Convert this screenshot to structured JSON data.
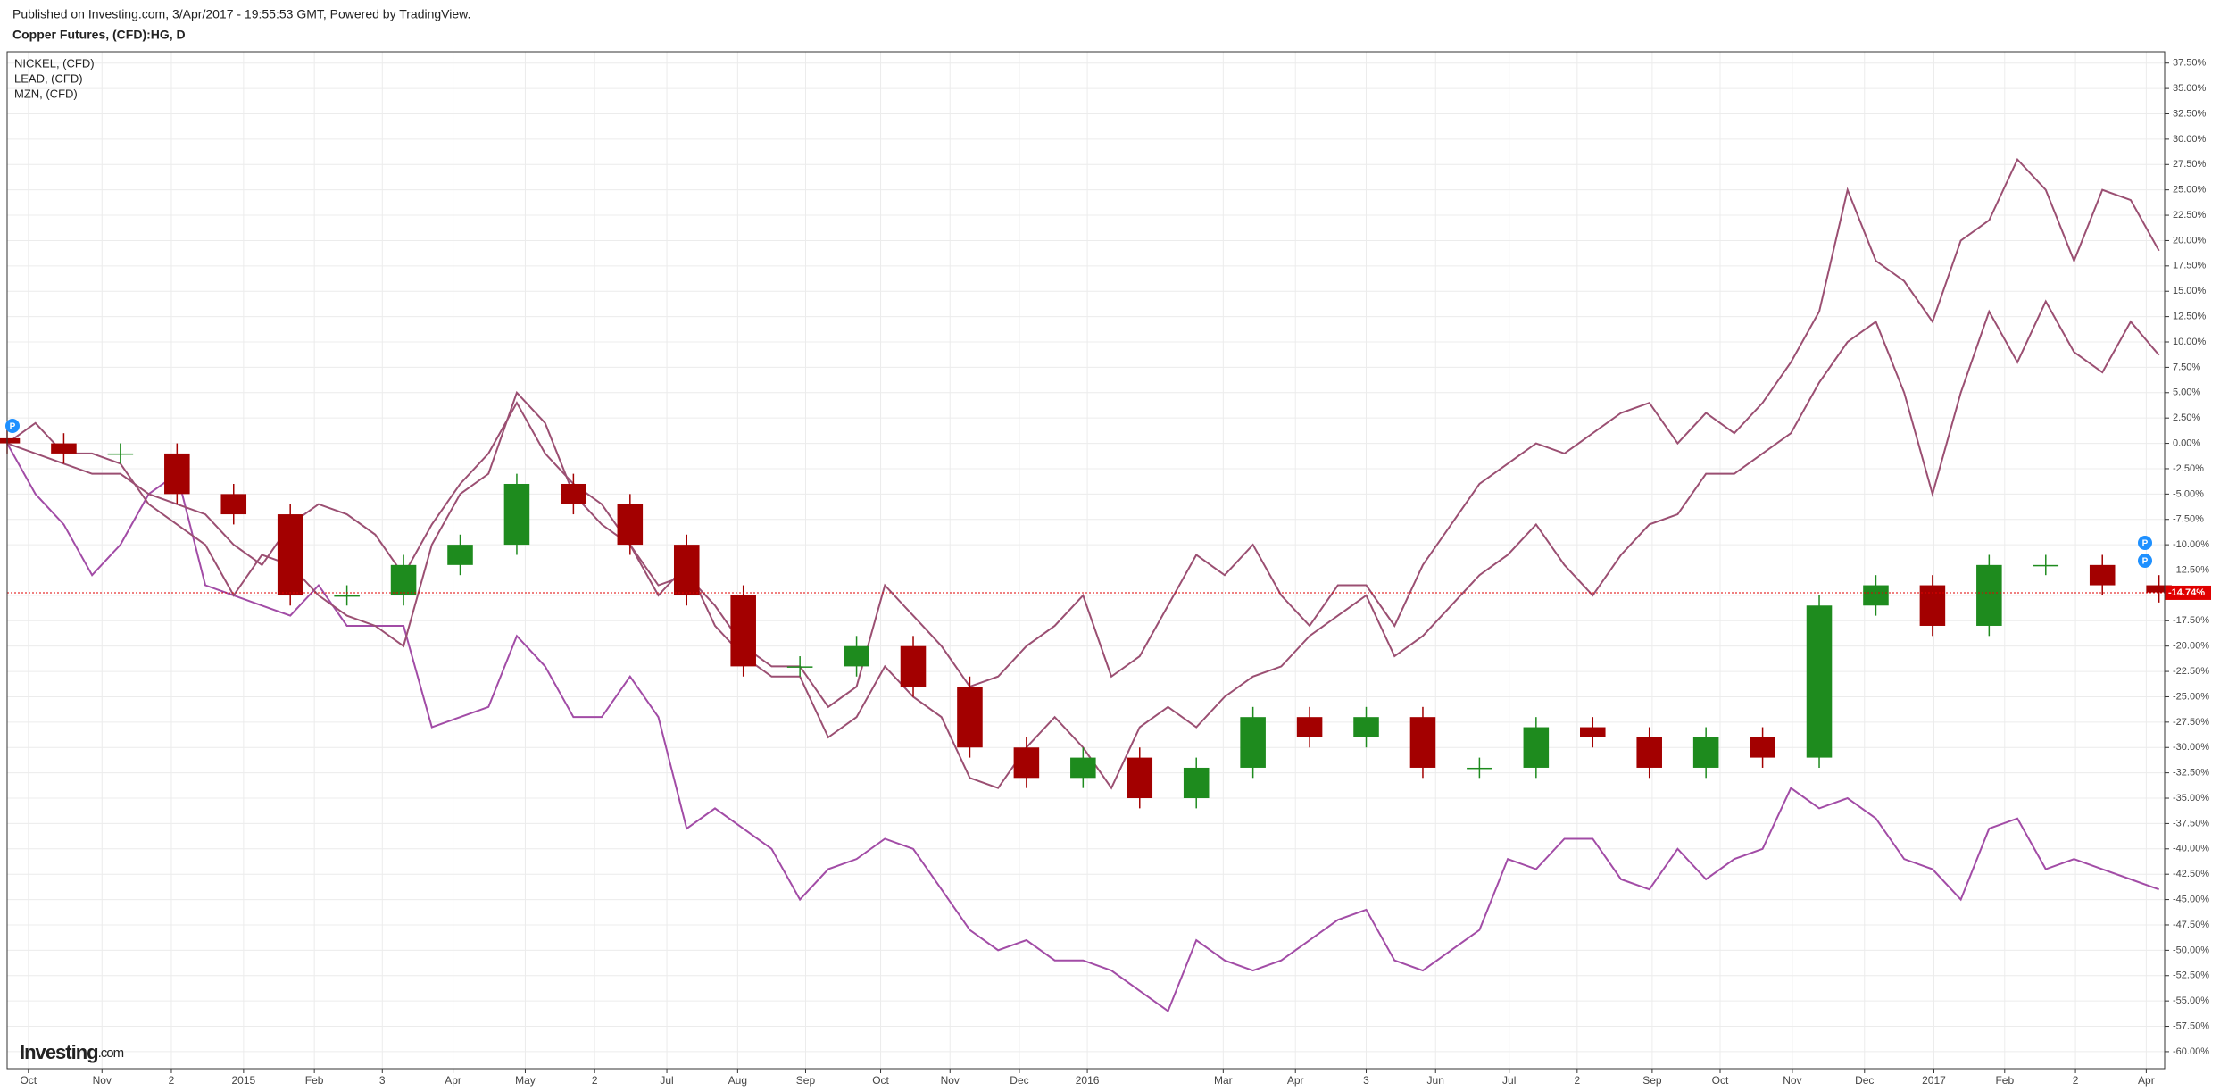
{
  "header": {
    "published": "Published on Investing.com, 3/Apr/2017 - 19:55:53 GMT, Powered by TradingView.",
    "symbol": "Copper Futures, (CFD):HG, D"
  },
  "logo": {
    "brand": "Investing",
    "suffix": ".com"
  },
  "chart_data": {
    "type": "candlestick",
    "ylim": [
      -61.68,
      38.62
    ],
    "xlim": [
      0,
      76.2
    ],
    "grid": true,
    "yticks": [
      {
        "value": 37.5,
        "label": "37.50%"
      },
      {
        "value": 35,
        "label": "35.00%"
      },
      {
        "value": 32.5,
        "label": "32.50%"
      },
      {
        "value": 30,
        "label": "30.00%"
      },
      {
        "value": 27.5,
        "label": "27.50%"
      },
      {
        "value": 25,
        "label": "25.00%"
      },
      {
        "value": 22.5,
        "label": "22.50%"
      },
      {
        "value": 20,
        "label": "20.00%"
      },
      {
        "value": 17.5,
        "label": "17.50%"
      },
      {
        "value": 15,
        "label": "15.00%"
      },
      {
        "value": 12.5,
        "label": "12.50%"
      },
      {
        "value": 10,
        "label": "10.00%"
      },
      {
        "value": 7.5,
        "label": "7.50%"
      },
      {
        "value": 5,
        "label": "5.00%"
      },
      {
        "value": 2.5,
        "label": "2.50%"
      },
      {
        "value": 0,
        "label": "0.00%"
      },
      {
        "value": -2.5,
        "label": "-2.50%"
      },
      {
        "value": -5,
        "label": "-5.00%"
      },
      {
        "value": -7.5,
        "label": "-7.50%"
      },
      {
        "value": -10,
        "label": "-10.00%"
      },
      {
        "value": -12.5,
        "label": "-12.50%"
      },
      {
        "value": -15,
        "label": "-15.00%"
      },
      {
        "value": -17.5,
        "label": "-17.50%"
      },
      {
        "value": -20,
        "label": "-20.00%"
      },
      {
        "value": -22.5,
        "label": "-22.50%"
      },
      {
        "value": -25,
        "label": "-25.00%"
      },
      {
        "value": -27.5,
        "label": "-27.50%"
      },
      {
        "value": -30,
        "label": "-30.00%"
      },
      {
        "value": -32.5,
        "label": "-32.50%"
      },
      {
        "value": -35,
        "label": "-35.00%"
      },
      {
        "value": -37.5,
        "label": "-37.50%"
      },
      {
        "value": -40,
        "label": "-40.00%"
      },
      {
        "value": -42.5,
        "label": "-42.50%"
      },
      {
        "value": -45,
        "label": "-45.00%"
      },
      {
        "value": -47.5,
        "label": "-47.50%"
      },
      {
        "value": -50,
        "label": "-50.00%"
      },
      {
        "value": -52.5,
        "label": "-52.50%"
      },
      {
        "value": -55,
        "label": "-55.00%"
      },
      {
        "value": -57.5,
        "label": "-57.50%"
      },
      {
        "value": -60,
        "label": "-60.00%"
      }
    ],
    "xticks": [
      {
        "value": 0.75,
        "label": "Oct"
      },
      {
        "value": 3.35,
        "label": "Nov"
      },
      {
        "value": 5.8,
        "label": "2"
      },
      {
        "value": 8.35,
        "label": "2015"
      },
      {
        "value": 10.85,
        "label": "Feb"
      },
      {
        "value": 13.25,
        "label": "3"
      },
      {
        "value": 15.75,
        "label": "Apr"
      },
      {
        "value": 18.3,
        "label": "May"
      },
      {
        "value": 20.75,
        "label": "2"
      },
      {
        "value": 23.3,
        "label": "Jul"
      },
      {
        "value": 25.8,
        "label": "Aug"
      },
      {
        "value": 28.2,
        "label": "Sep"
      },
      {
        "value": 30.85,
        "label": "Oct"
      },
      {
        "value": 33.3,
        "label": "Nov"
      },
      {
        "value": 35.75,
        "label": "Dec"
      },
      {
        "value": 38.15,
        "label": "2016"
      },
      {
        "value": 42.95,
        "label": "Mar"
      },
      {
        "value": 45.5,
        "label": "Apr"
      },
      {
        "value": 48,
        "label": "3"
      },
      {
        "value": 50.45,
        "label": "Jun"
      },
      {
        "value": 53.05,
        "label": "Jul"
      },
      {
        "value": 55.45,
        "label": "2"
      },
      {
        "value": 58.1,
        "label": "Sep"
      },
      {
        "value": 60.5,
        "label": "Oct"
      },
      {
        "value": 63.05,
        "label": "Nov"
      },
      {
        "value": 65.6,
        "label": "Dec"
      },
      {
        "value": 68.05,
        "label": "2017"
      },
      {
        "value": 70.55,
        "label": "Feb"
      },
      {
        "value": 73.05,
        "label": "2"
      },
      {
        "value": 75.55,
        "label": "Apr"
      }
    ],
    "candles": {
      "up_color": "#1e8b1e",
      "down_color": "#a30000",
      "x": [
        0,
        2,
        4,
        6,
        8,
        10,
        12,
        14,
        16,
        18,
        20,
        22,
        24,
        26,
        28,
        30,
        32,
        34,
        36,
        38,
        40,
        42,
        44,
        46,
        48,
        50,
        52,
        54,
        56,
        58,
        60,
        62,
        64,
        66,
        68,
        70,
        72,
        74,
        76
      ],
      "open": [
        0.5,
        0,
        -1,
        -1,
        -5,
        -7,
        -15,
        -15,
        -12,
        -10,
        -4,
        -6,
        -10,
        -15,
        -22,
        -22,
        -20,
        -24,
        -30,
        -33,
        -31,
        -35,
        -32,
        -27,
        -29,
        -27,
        -32,
        -32,
        -28,
        -29,
        -32,
        -29,
        -31,
        -16,
        -14,
        -18,
        -12,
        -12,
        -14
      ],
      "high": [
        1.5,
        1,
        0,
        0,
        -4,
        -6,
        -14,
        -11,
        -9,
        -3,
        -3,
        -5,
        -9,
        -14,
        -21,
        -19,
        -19,
        -23,
        -29,
        -30,
        -30,
        -31,
        -26,
        -26,
        -26,
        -26,
        -31,
        -27,
        -27,
        -28,
        -28,
        -28,
        -15,
        -13,
        -13,
        -11,
        -11,
        -11,
        -13
      ],
      "low": [
        -1,
        -2,
        -2,
        -6,
        -8,
        -16,
        -16,
        -16,
        -13,
        -11,
        -7,
        -11,
        -16,
        -23,
        -23,
        -23,
        -25,
        -31,
        -34,
        -34,
        -36,
        -36,
        -33,
        -30,
        -30,
        -33,
        -33,
        -33,
        -30,
        -33,
        -33,
        -32,
        -32,
        -17,
        -19,
        -19,
        -13,
        -15,
        -15.7
      ],
      "close": [
        0,
        -1,
        -1,
        -5,
        -7,
        -15,
        -15,
        -12,
        -10,
        -4,
        -6,
        -10,
        -15,
        -22,
        -22,
        -20,
        -24,
        -30,
        -33,
        -31,
        -35,
        -32,
        -27,
        -29,
        -27,
        -32,
        -32,
        -28,
        -29,
        -32,
        -29,
        -31,
        -16,
        -14,
        -18,
        -12,
        -12,
        -14,
        -14.7
      ]
    },
    "last_value": -14.74,
    "last_label": "-14.74%",
    "last_color": "#e00000",
    "series": [
      {
        "name": "NICKEL,  (CFD)",
        "color": "#a24ca6",
        "values": [
          0,
          -5,
          -8,
          -13,
          -10,
          -5,
          -3,
          -14,
          -15,
          -16,
          -17,
          -14,
          -18,
          -18,
          -18,
          -28,
          -27,
          -26,
          -19,
          -22,
          -27,
          -27,
          -23,
          -27,
          -38,
          -36,
          -38,
          -40,
          -45,
          -42,
          -41,
          -39,
          -40,
          -44,
          -48,
          -50,
          -49,
          -51,
          -51,
          -52,
          -54,
          -56,
          -49,
          -51,
          -52,
          -51,
          -49,
          -47,
          -46,
          -51,
          -52,
          -50,
          -48,
          -41,
          -42,
          -39,
          -39,
          -43,
          -44,
          -40,
          -43,
          -41,
          -40,
          -34,
          -36,
          -35,
          -37,
          -41,
          -42,
          -45,
          -38,
          -37,
          -42,
          -41,
          -42,
          -43,
          -44
        ]
      },
      {
        "name": "LEAD,  (CFD)",
        "color": "#9b4f72",
        "values": [
          0,
          2,
          -1,
          -1,
          -2,
          -6,
          -8,
          -10,
          -15,
          -11,
          -12,
          -15,
          -17,
          -18,
          -20,
          -10,
          -5,
          -3,
          5,
          2,
          -5,
          -8,
          -10,
          -15,
          -12,
          -18,
          -21,
          -23,
          -23,
          -29,
          -27,
          -22,
          -25,
          -27,
          -33,
          -34,
          -30,
          -27,
          -30,
          -34,
          -28,
          -26,
          -28,
          -25,
          -23,
          -22,
          -19,
          -17,
          -15,
          -21,
          -19,
          -16,
          -13,
          -11,
          -8,
          -12,
          -15,
          -11,
          -8,
          -7,
          -3,
          -3,
          -1,
          1,
          6,
          10,
          12,
          5,
          -5,
          5,
          13,
          8,
          14,
          9,
          7,
          12,
          8.7
        ]
      },
      {
        "name": "MZN,  (CFD)",
        "color": "#9b4f72",
        "values": [
          0,
          -1,
          -2,
          -3,
          -3,
          -5,
          -6,
          -7,
          -10,
          -12,
          -8,
          -6,
          -7,
          -9,
          -13,
          -8,
          -4,
          -1,
          4,
          -1,
          -4,
          -6,
          -10,
          -14,
          -13,
          -16,
          -20,
          -22,
          -22,
          -26,
          -24,
          -14,
          -17,
          -20,
          -24,
          -23,
          -20,
          -18,
          -15,
          -23,
          -21,
          -16,
          -11,
          -13,
          -10,
          -15,
          -18,
          -14,
          -14,
          -18,
          -12,
          -8,
          -4,
          -2,
          0,
          -1,
          1,
          3,
          4,
          0,
          3,
          1,
          4,
          8,
          13,
          25,
          18,
          16,
          12,
          20,
          22,
          28,
          25,
          18,
          25,
          24,
          19
        ]
      }
    ]
  }
}
